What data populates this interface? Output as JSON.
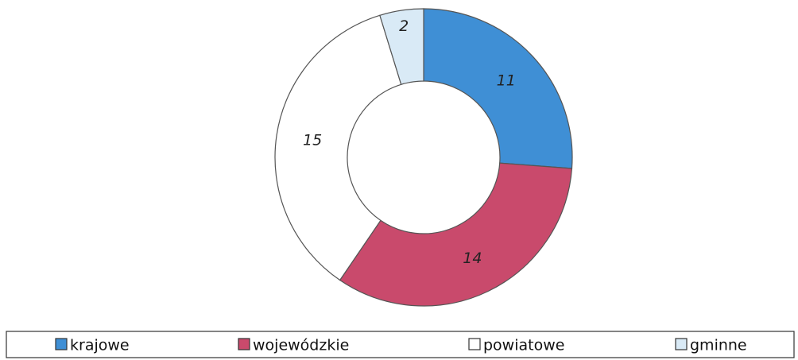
{
  "chart_data": {
    "type": "donut",
    "categories": [
      "krajowe",
      "wojewódzkie",
      "powiatowe",
      "gminne"
    ],
    "values": [
      11,
      14,
      15,
      2
    ],
    "colors": [
      "#3f8fd5",
      "#c94a6c",
      "#ffffff",
      "#d9eaf6"
    ]
  }
}
